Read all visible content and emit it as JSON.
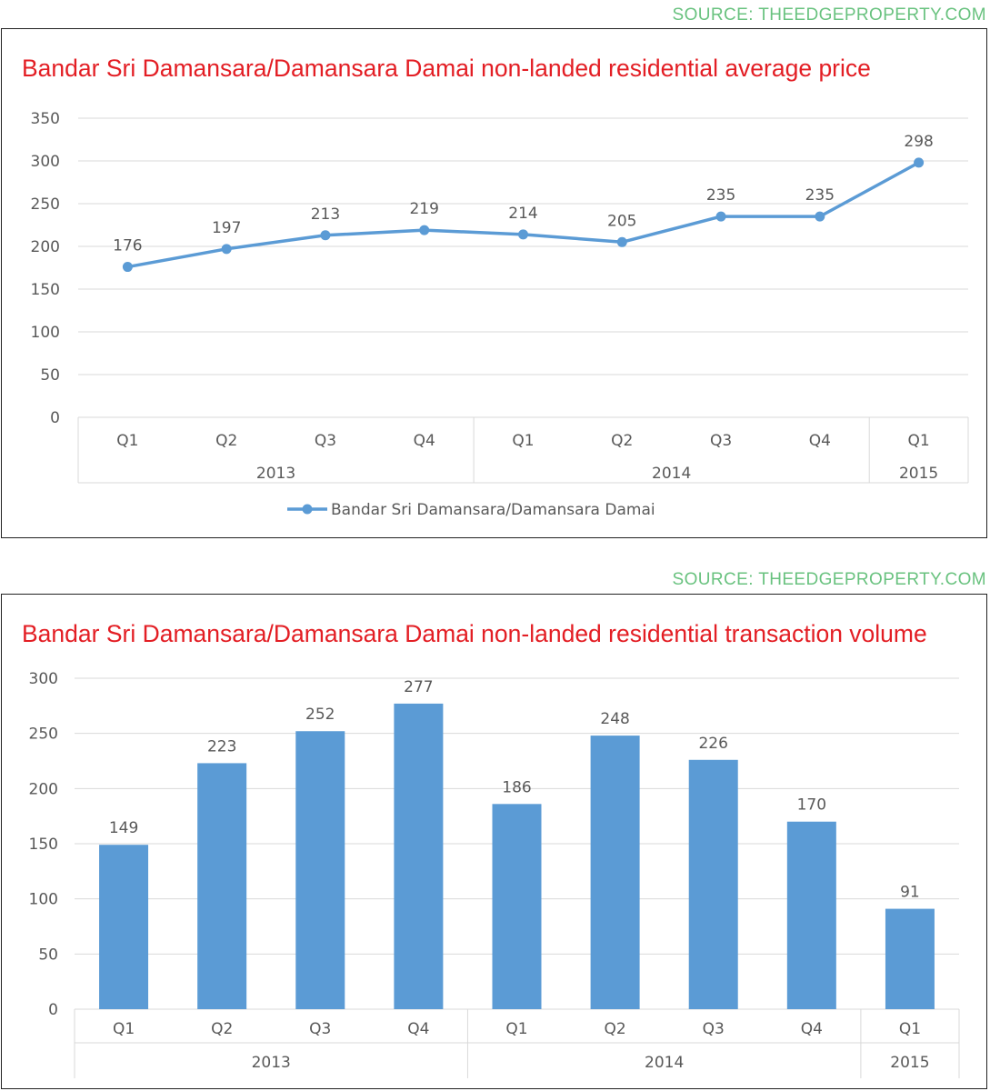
{
  "sources": [
    "SOURCE: THEEDGEPROPERTY.COM",
    "SOURCE: THEEDGEPROPERTY.COM"
  ],
  "colors": {
    "title": "#e31e24",
    "source": "#69c27f",
    "series": "#5b9bd5",
    "grid": "#d9d9d9",
    "text": "#595959"
  },
  "chart_data": [
    {
      "type": "line",
      "title": "Bandar Sri Damansara/Damansara Damai non-landed residential average price",
      "categories": [
        "Q1",
        "Q2",
        "Q3",
        "Q4",
        "Q1",
        "Q2",
        "Q3",
        "Q4",
        "Q1"
      ],
      "groups": [
        {
          "label": "2013",
          "count": 4
        },
        {
          "label": "2014",
          "count": 4
        },
        {
          "label": "2015",
          "count": 1
        }
      ],
      "series": [
        {
          "name": "Bandar Sri Damansara/Damansara Damai",
          "values": [
            176,
            197,
            213,
            219,
            214,
            205,
            235,
            235,
            298
          ]
        }
      ],
      "ylim": [
        0,
        350
      ],
      "yticks": [
        0,
        50,
        100,
        150,
        200,
        250,
        300,
        350
      ],
      "grid": true,
      "data_labels": true,
      "legend": "bottom"
    },
    {
      "type": "bar",
      "title": "Bandar Sri Damansara/Damansara Damai non-landed residential transaction volume",
      "categories": [
        "Q1",
        "Q2",
        "Q3",
        "Q4",
        "Q1",
        "Q2",
        "Q3",
        "Q4",
        "Q1"
      ],
      "groups": [
        {
          "label": "2013",
          "count": 4
        },
        {
          "label": "2014",
          "count": 4
        },
        {
          "label": "2015",
          "count": 1
        }
      ],
      "values": [
        149,
        223,
        252,
        277,
        186,
        248,
        226,
        170,
        91
      ],
      "ylim": [
        0,
        300
      ],
      "yticks": [
        0,
        50,
        100,
        150,
        200,
        250,
        300
      ],
      "grid": true,
      "data_labels": true
    }
  ]
}
